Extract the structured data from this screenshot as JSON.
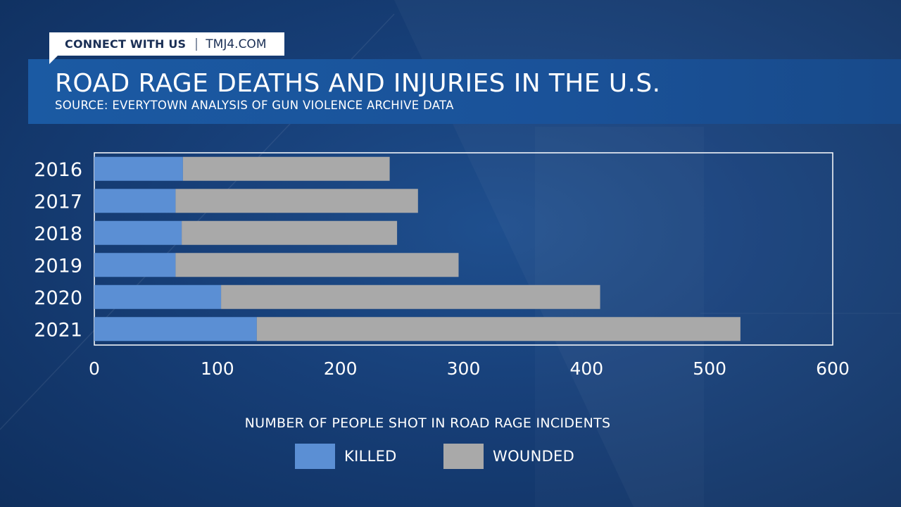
{
  "header": {
    "connect_label": "CONNECT WITH US",
    "site": "TMJ4.COM",
    "title": "ROAD RAGE DEATHS AND INJURIES IN THE U.S.",
    "subtitle": "SOURCE: EVERYTOWN ANALYSIS OF GUN VIOLENCE ARCHIVE DATA"
  },
  "colors": {
    "killed": "#5b8fd4",
    "wounded": "#a9a9a9",
    "background": "#173f78",
    "plot_border": "#ffffff"
  },
  "chart_data": {
    "type": "bar",
    "orientation": "horizontal",
    "stacked": true,
    "title": "ROAD RAGE DEATHS AND INJURIES IN THE U.S.",
    "xlabel": "NUMBER OF PEOPLE SHOT IN ROAD RAGE INCIDENTS",
    "ylabel": "",
    "categories": [
      "2016",
      "2017",
      "2018",
      "2019",
      "2020",
      "2021"
    ],
    "series": [
      {
        "name": "KILLED",
        "values": [
          72,
          66,
          71,
          66,
          103,
          132
        ]
      },
      {
        "name": "WOUNDED",
        "values": [
          168,
          197,
          175,
          230,
          308,
          393
        ]
      }
    ],
    "xlim": [
      0,
      600
    ],
    "xticks": [
      0,
      100,
      200,
      300,
      400,
      500,
      600
    ],
    "grid": false,
    "legend_position": "bottom"
  }
}
